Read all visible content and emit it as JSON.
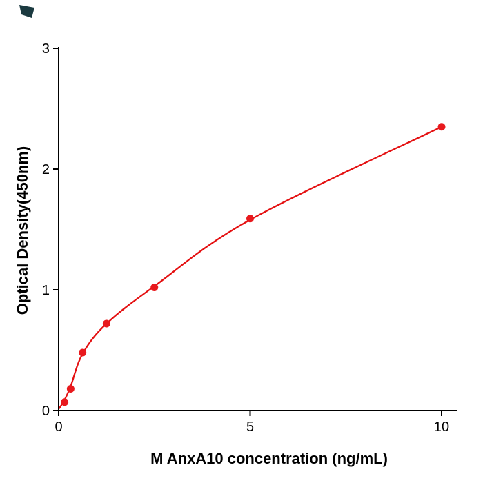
{
  "figure": {
    "background": "#ffffff",
    "corner_mark_color": "#1b3a40"
  },
  "chart_data": {
    "type": "scatter",
    "title": "",
    "xlabel": "M  AnxA10 concentration (ng/mL)",
    "ylabel": "Optical Density(450nm)",
    "x": [
      0.156,
      0.313,
      0.625,
      1.25,
      2.5,
      5,
      10
    ],
    "y": [
      0.07,
      0.18,
      0.48,
      0.72,
      1.02,
      1.59,
      2.35
    ],
    "series": [
      {
        "name": "standards",
        "style": "points",
        "x": [
          0.156,
          0.313,
          0.625,
          1.25,
          2.5,
          5,
          10
        ],
        "y": [
          0.07,
          0.18,
          0.48,
          0.72,
          1.02,
          1.59,
          2.35
        ]
      },
      {
        "name": "fit-curve",
        "style": "smooth-line-through-points",
        "x": [
          0.02,
          0.156,
          0.313,
          0.625,
          1.25,
          2.5,
          5,
          10
        ],
        "y": [
          0.02,
          0.09,
          0.2,
          0.47,
          0.72,
          1.03,
          1.58,
          2.35
        ]
      }
    ],
    "xlim": [
      0,
      10.4
    ],
    "ylim": [
      0,
      3
    ],
    "xticks": [
      0,
      5,
      10
    ],
    "yticks": [
      0,
      1,
      2,
      3
    ],
    "grid": false,
    "legend": null,
    "point_color": "#e8191d",
    "line_color": "#e41011",
    "axis_color": "#000000"
  }
}
